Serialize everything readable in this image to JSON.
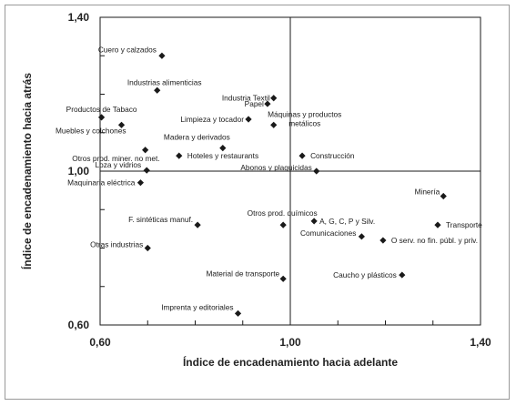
{
  "chart_data": {
    "type": "scatter",
    "title": "",
    "xlabel": "Índice de encadenamiento hacia adelante",
    "ylabel": "Índice de encadenamiento hacia atrás",
    "xlim": [
      0.6,
      1.4
    ],
    "ylim": [
      0.6,
      1.4
    ],
    "x_ticks": [
      {
        "value": 0.6,
        "label": "0,60"
      },
      {
        "value": 1.0,
        "label": "1,00"
      },
      {
        "value": 1.4,
        "label": "1,40"
      }
    ],
    "y_ticks": [
      {
        "value": 0.6,
        "label": "0,60"
      },
      {
        "value": 1.0,
        "label": "1,00"
      },
      {
        "value": 1.4,
        "label": "1,40"
      }
    ],
    "reference_lines": {
      "x": 1.0,
      "y": 1.0
    },
    "grid": false,
    "marker": "diamond",
    "marker_color": "#1a1a1a",
    "points": [
      {
        "label": "Cuero y calzados",
        "x": 0.73,
        "y": 1.3
      },
      {
        "label": "Industrias alimenticias",
        "x": 0.72,
        "y": 1.21
      },
      {
        "label": "Productos de Tabaco",
        "x": 0.603,
        "y": 1.14
      },
      {
        "label": "Muebles y colchones",
        "x": 0.645,
        "y": 1.12
      },
      {
        "label": "Otros prod. miner. no met.",
        "x": 0.695,
        "y": 1.055
      },
      {
        "label": "Loza y vidrios",
        "x": 0.698,
        "y": 1.002
      },
      {
        "label": "Maquinaria eléctrica",
        "x": 0.685,
        "y": 0.97
      },
      {
        "label": "Industria Textil",
        "x": 0.965,
        "y": 1.19
      },
      {
        "label": "Papel",
        "x": 0.952,
        "y": 1.175
      },
      {
        "label": "Limpieza y tocador",
        "x": 0.912,
        "y": 1.135
      },
      {
        "label": "Máquinas y productos metálicos",
        "x": 0.965,
        "y": 1.12
      },
      {
        "label": "Madera y derivados",
        "x": 0.858,
        "y": 1.06
      },
      {
        "label": "Hoteles y restaurants",
        "x": 0.766,
        "y": 1.04
      },
      {
        "label": "Construcción",
        "x": 1.025,
        "y": 1.04
      },
      {
        "label": "Abonos y plaguicidas",
        "x": 1.055,
        "y": 1.0
      },
      {
        "label": "F. sintéticas manuf.",
        "x": 0.805,
        "y": 0.86
      },
      {
        "label": "Otros prod. químicos",
        "x": 0.985,
        "y": 0.86
      },
      {
        "label": "A, G, C, P y Silv.",
        "x": 1.05,
        "y": 0.87
      },
      {
        "label": "Minería",
        "x": 1.322,
        "y": 0.935
      },
      {
        "label": "Transporte",
        "x": 1.31,
        "y": 0.86
      },
      {
        "label": "Comunicaciones",
        "x": 1.15,
        "y": 0.83
      },
      {
        "label": "O serv. no fin. públ. y priv.",
        "x": 1.195,
        "y": 0.82
      },
      {
        "label": "Otras industrias",
        "x": 0.7,
        "y": 0.8
      },
      {
        "label": "Caucho y plásticos",
        "x": 1.235,
        "y": 0.73
      },
      {
        "label": "Material de transporte",
        "x": 0.985,
        "y": 0.72
      },
      {
        "label": "Imprenta y editoriales",
        "x": 0.89,
        "y": 0.63
      }
    ]
  }
}
